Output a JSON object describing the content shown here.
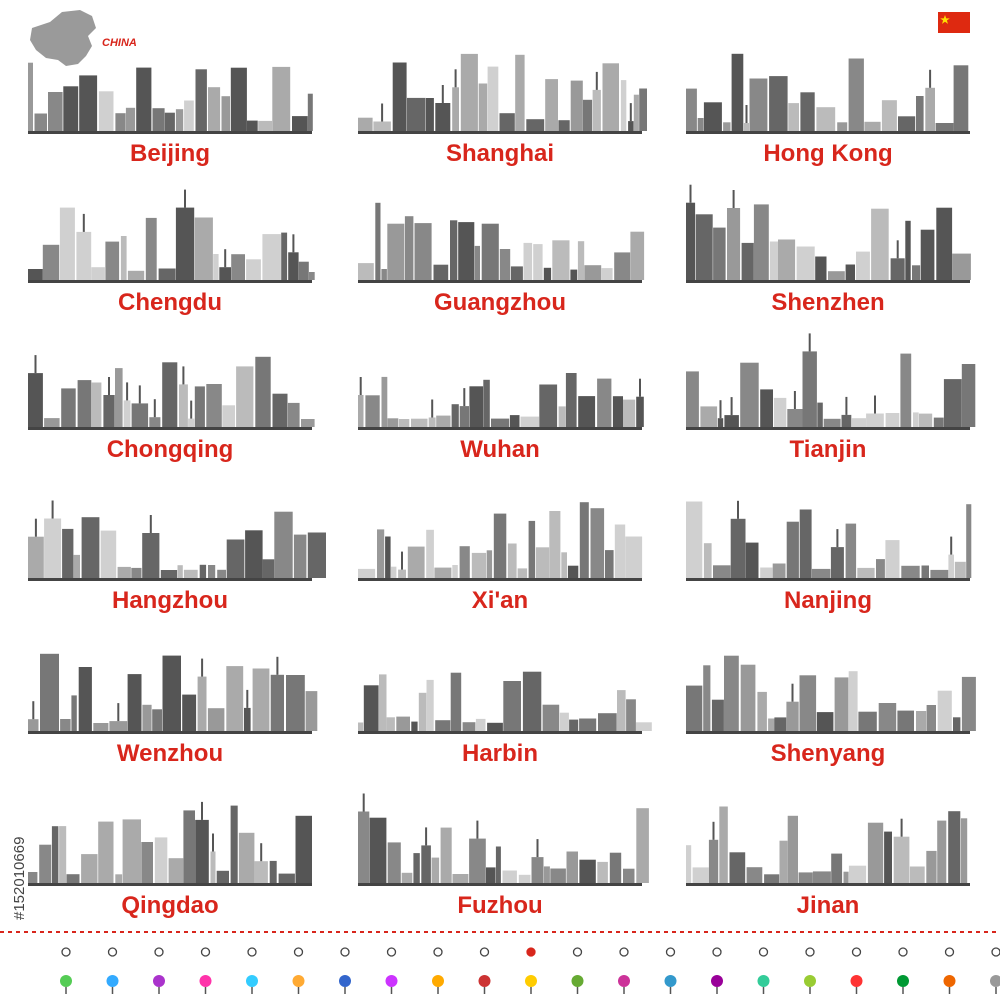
{
  "header": {
    "country": "CHINA"
  },
  "cities": [
    "Beijing",
    "Shanghai",
    "Hong Kong",
    "Chengdu",
    "Guangzhou",
    "Shenzhen",
    "Chongqing",
    "Wuhan",
    "Tianjin",
    "Hangzhou",
    "Xi'an",
    "Nanjing",
    "Wenzhou",
    "Harbin",
    "Shenyang",
    "Qingdao",
    "Fuzhou",
    "Jinan"
  ],
  "watermark": "#152010669"
}
